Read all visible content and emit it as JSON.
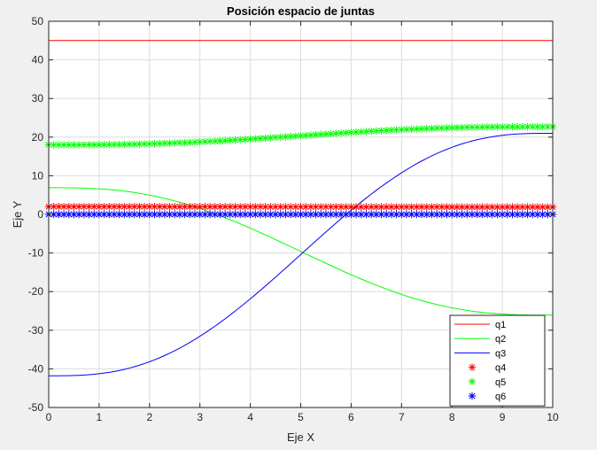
{
  "chart_data": {
    "type": "line",
    "title": "Posición espacio de juntas",
    "xlabel": "Eje X",
    "ylabel": "Eje Y",
    "xlim": [
      0,
      10
    ],
    "ylim": [
      -50,
      50
    ],
    "xticks": [
      0,
      1,
      2,
      3,
      4,
      5,
      6,
      7,
      8,
      9,
      10
    ],
    "yticks": [
      -50,
      -40,
      -30,
      -20,
      -10,
      0,
      10,
      20,
      30,
      40,
      50
    ],
    "xtick_labels": [
      "0",
      "1",
      "2",
      "3",
      "4",
      "5",
      "6",
      "7",
      "8",
      "9",
      "10"
    ],
    "ytick_labels": [
      "-50",
      "-40",
      "-30",
      "-20",
      "-10",
      "0",
      "10",
      "20",
      "30",
      "40",
      "50"
    ],
    "grid": true,
    "legend_position": "bottom-right",
    "series": [
      {
        "name": "q1",
        "style": "line",
        "color": "#ff0000",
        "start": 45,
        "end": 45
      },
      {
        "name": "q2",
        "style": "line",
        "color": "#00ff00",
        "start": 6.9,
        "end": -26.1
      },
      {
        "name": "q3",
        "style": "line",
        "color": "#0000ff",
        "start": -41.8,
        "end": 21.0
      },
      {
        "name": "q4",
        "style": "marker",
        "color": "#ff0000",
        "start": 2.0,
        "end": 1.9
      },
      {
        "name": "q5",
        "style": "marker",
        "color": "#00ff00",
        "start": 18.0,
        "end": 22.7
      },
      {
        "name": "q6",
        "style": "marker",
        "color": "#0000ff",
        "start": 0.0,
        "end": 0.0
      }
    ],
    "samples": 101,
    "marker_count": 101
  }
}
